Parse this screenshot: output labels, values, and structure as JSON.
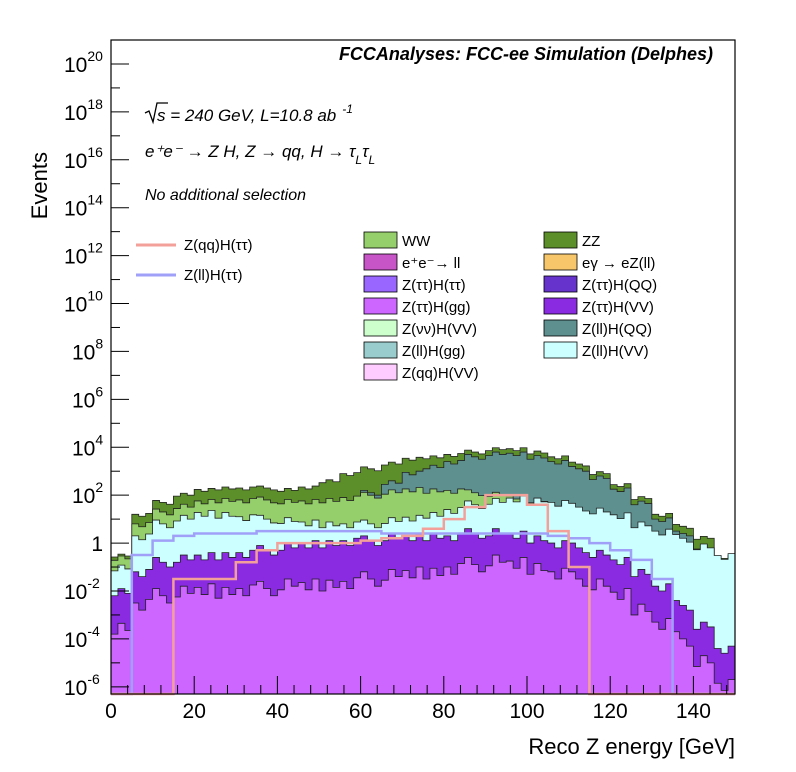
{
  "chart_data": {
    "type": "area",
    "title": "FCCAnalyses: FCC-ee Simulation (Delphes)",
    "xlabel": "Reco Z energy [GeV]",
    "ylabel": "Events",
    "xlim": [
      0,
      150
    ],
    "ylim_log10": [
      -6.3,
      21
    ],
    "yscale": "log",
    "grid": false,
    "legend": "top",
    "x_ticks": [
      {
        "v": 0,
        "label": "0"
      },
      {
        "v": 20,
        "label": "20"
      },
      {
        "v": 40,
        "label": "40"
      },
      {
        "v": 60,
        "label": "60"
      },
      {
        "v": 80,
        "label": "80"
      },
      {
        "v": 100,
        "label": "100"
      },
      {
        "v": 120,
        "label": "120"
      },
      {
        "v": 140,
        "label": "140"
      }
    ],
    "y_ticks": [
      {
        "e": -6,
        "base": "10",
        "exp": "-6"
      },
      {
        "e": -4,
        "base": "10",
        "exp": "-4"
      },
      {
        "e": -2,
        "base": "10",
        "exp": "-2"
      },
      {
        "e": 0,
        "base": "1",
        "exp": ""
      },
      {
        "e": 2,
        "base": "10",
        "exp": "2"
      },
      {
        "e": 4,
        "base": "10",
        "exp": "4"
      },
      {
        "e": 6,
        "base": "10",
        "exp": "6"
      },
      {
        "e": 8,
        "base": "10",
        "exp": "8"
      },
      {
        "e": 10,
        "base": "10",
        "exp": "10"
      },
      {
        "e": 12,
        "base": "10",
        "exp": "12"
      },
      {
        "e": 14,
        "base": "10",
        "exp": "14"
      },
      {
        "e": 16,
        "base": "10",
        "exp": "16"
      },
      {
        "e": 18,
        "base": "10",
        "exp": "18"
      },
      {
        "e": 20,
        "base": "10",
        "exp": "20"
      }
    ],
    "annotations": {
      "energy_prefix": "s",
      "energy_rest": " = 240 GeV, L=10.8 ab",
      "energy_exp": "-1",
      "process": "e⁺e⁻ → Z H, Z → qq, H → τ",
      "process_sub": "L",
      "process_mid": "τ",
      "process_sub2": "L",
      "selection": "No additional selection"
    },
    "signal_legend": [
      {
        "name": "Z(qq)H(ττ)",
        "color": "#f4a09a"
      },
      {
        "name": "Z(ll)H(ττ)",
        "color": "#a0a0f8"
      }
    ],
    "background_legend": [
      {
        "name": "WW",
        "color": "#95cf6b"
      },
      {
        "name": "ZZ",
        "color": "#5c8e2a"
      },
      {
        "name": "e⁺e⁻→ ll",
        "color": "#c855c8"
      },
      {
        "name": "eγ → eZ(ll)",
        "color": "#f8c66a"
      },
      {
        "name": "Z(ττ)H(ττ)",
        "color": "#9966ff"
      },
      {
        "name": "Z(ττ)H(QQ)",
        "color": "#6633cc"
      },
      {
        "name": "Z(ττ)H(gg)",
        "color": "#cc66ff"
      },
      {
        "name": "Z(ττ)H(VV)",
        "color": "#8a2be2"
      },
      {
        "name": "Z(νν)H(VV)",
        "color": "#ccffcc"
      },
      {
        "name": "Z(ll)H(QQ)",
        "color": "#5f9090"
      },
      {
        "name": "Z(ll)H(gg)",
        "color": "#99cccc"
      },
      {
        "name": "Z(ll)H(VV)",
        "color": "#ccffff"
      },
      {
        "name": "Z(qq)H(VV)",
        "color": "#ffccff"
      }
    ],
    "stack_colors": {
      "ZZ": "#5c8e2a",
      "WW": "#95cf6b",
      "eell": "#c855c8",
      "egamma": "#f8c66a",
      "ZllHVV": "#ccffff",
      "ZllHQQ": "#5f9090",
      "ZllHgg": "#99cccc",
      "ZnnHVV": "#ccffcc",
      "ZqqHVV": "#ffccff",
      "ZttHQQ": "#6633cc",
      "ZttHtt": "#9966ff",
      "ZttHVV": "#8a2be2",
      "ZttHgg": "#cc66ff"
    },
    "series_points": {
      "x": [
        5,
        10,
        15,
        20,
        25,
        30,
        35,
        40,
        45,
        50,
        55,
        60,
        65,
        70,
        75,
        80,
        85,
        90,
        95,
        100,
        105,
        110,
        115,
        120,
        125,
        130,
        135,
        140,
        145,
        150
      ],
      "total_stack_log10": [
        -0.5,
        1.2,
        1.7,
        2.0,
        2.2,
        2.3,
        2.3,
        2.3,
        2.2,
        2.3,
        2.6,
        2.9,
        3.1,
        3.3,
        3.5,
        3.6,
        3.7,
        3.8,
        3.9,
        3.9,
        3.8,
        3.6,
        3.3,
        2.9,
        2.4,
        1.9,
        1.2,
        0.7,
        0.2,
        -0.6
      ],
      "WW_top_log10": [
        -0.6,
        0.8,
        1.3,
        1.5,
        1.7,
        1.8,
        1.8,
        1.8,
        1.7,
        1.7,
        1.8,
        1.9,
        2.0,
        2.1,
        2.2,
        2.2,
        2.2,
        2.1,
        2.0,
        1.9,
        1.8,
        1.6,
        1.3,
        1.0,
        0.7,
        0.3,
        -0.1,
        -0.5,
        -1.0,
        -1.5
      ],
      "ZllHQQ_top_log10": [
        -1.5,
        -0.5,
        0.1,
        0.4,
        0.6,
        0.7,
        0.8,
        0.9,
        0.9,
        1.0,
        1.3,
        1.7,
        2.1,
        2.5,
        2.9,
        3.2,
        3.4,
        3.6,
        3.7,
        3.7,
        3.6,
        3.4,
        3.1,
        2.7,
        2.2,
        1.7,
        1.0,
        0.4,
        -0.2,
        -0.9
      ],
      "eell_top_log10": [
        -1.0,
        0.3,
        0.8,
        1.0,
        1.2,
        1.2,
        1.1,
        1.0,
        0.9,
        0.8,
        0.8,
        0.8,
        0.8,
        0.9,
        1.0,
        1.2,
        1.4,
        1.6,
        1.7,
        1.8,
        1.8,
        1.7,
        1.5,
        1.3,
        1.1,
        0.8,
        0.5,
        0.2,
        -0.2,
        -0.6
      ],
      "ZttHVV_top_log10": [
        -2.0,
        -1.2,
        -0.8,
        -0.7,
        -0.6,
        -0.5,
        -0.4,
        -0.3,
        -0.2,
        -0.1,
        0.0,
        0.1,
        0.1,
        0.2,
        0.2,
        0.3,
        0.3,
        0.4,
        0.4,
        0.3,
        0.2,
        0.0,
        -0.2,
        -0.5,
        -0.8,
        -1.2,
        -1.8,
        -2.6,
        -3.5,
        -4.5
      ],
      "ZttHgg_top_log10": [
        -3.5,
        -2.5,
        -2.2,
        -2.1,
        -2.0,
        -2.0,
        -1.9,
        -1.9,
        -1.8,
        -1.8,
        -1.7,
        -1.6,
        -1.5,
        -1.4,
        -1.3,
        -1.2,
        -1.0,
        -0.9,
        -0.8,
        -0.9,
        -1.0,
        -1.2,
        -1.5,
        -1.8,
        -2.2,
        -2.7,
        -3.3,
        -4.0,
        -5.0,
        -6.0
      ],
      "ZqqHtt_log10": [
        -6.3,
        -6.3,
        -6.3,
        -1.5,
        -1.5,
        -1.5,
        -0.8,
        -0.3,
        0.0,
        0.0,
        0.0,
        0.0,
        0.1,
        0.2,
        0.3,
        0.6,
        1.0,
        1.5,
        2.0,
        2.0,
        1.6,
        0.5,
        -1.0,
        -6.3,
        -6.3,
        -6.3,
        -6.3,
        -6.3,
        -6.3,
        -6.3
      ],
      "ZllHtt_log10": [
        -6.3,
        -0.5,
        0.1,
        0.3,
        0.4,
        0.4,
        0.4,
        0.5,
        0.5,
        0.5,
        0.5,
        0.5,
        0.5,
        0.4,
        0.4,
        0.4,
        0.4,
        0.4,
        0.4,
        0.4,
        0.4,
        0.3,
        0.2,
        0.0,
        -0.3,
        -0.7,
        -1.5,
        -6.3,
        -6.3,
        -6.3
      ]
    }
  }
}
